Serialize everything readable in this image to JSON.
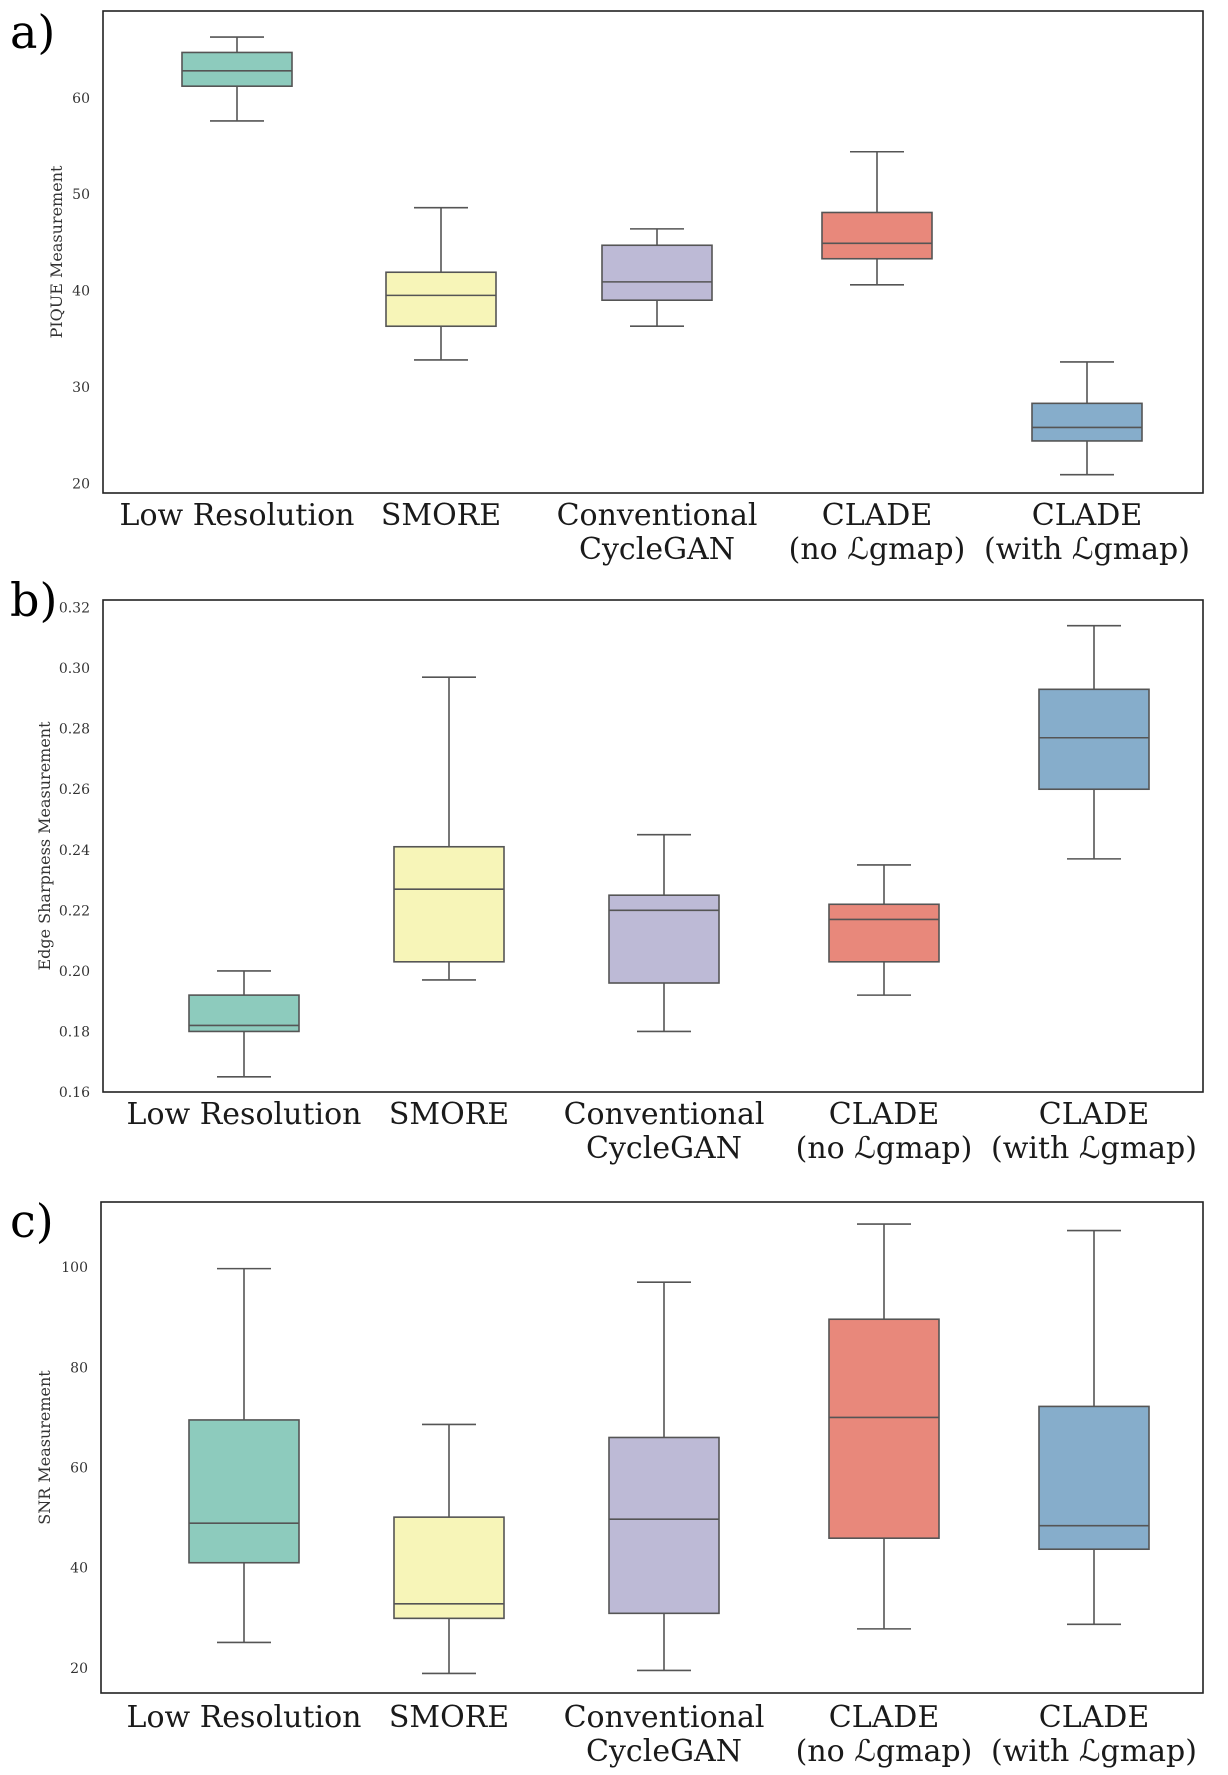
{
  "chart_data": [
    {
      "type": "box",
      "panel_label": "a)",
      "ylabel": "PIQUE Measurement",
      "ylim": [
        19,
        69
      ],
      "yticks": [
        20,
        30,
        40,
        50,
        60
      ],
      "categories": [
        {
          "line1": "Low Resolution",
          "line2": ""
        },
        {
          "line1": "SMORE",
          "line2": ""
        },
        {
          "line1": "Conventional",
          "line2": "CycleGAN"
        },
        {
          "line1": "CLADE",
          "line2": "(no ℒgmap)"
        },
        {
          "line1": "CLADE",
          "line2": "(with ℒgmap)"
        }
      ],
      "boxes": [
        {
          "min": 57.6,
          "q1": 61.2,
          "median": 62.8,
          "q3": 64.7,
          "max": 66.3,
          "color": "#8dcbbd"
        },
        {
          "min": 32.8,
          "q1": 36.3,
          "median": 39.5,
          "q3": 41.9,
          "max": 48.6,
          "color": "#f7f5b8"
        },
        {
          "min": 36.3,
          "q1": 39.0,
          "median": 40.9,
          "q3": 44.7,
          "max": 46.4,
          "color": "#bdbad6"
        },
        {
          "min": 40.6,
          "q1": 43.3,
          "median": 44.9,
          "q3": 48.1,
          "max": 54.4,
          "color": "#e8887b"
        },
        {
          "min": 20.9,
          "q1": 24.4,
          "median": 25.8,
          "q3": 28.3,
          "max": 32.6,
          "color": "#86adcb"
        }
      ]
    },
    {
      "type": "box",
      "panel_label": "b)",
      "ylabel": "Edge Sharpness Measurement",
      "ylim": [
        0.16,
        0.3225
      ],
      "yticks": [
        0.16,
        0.18,
        0.2,
        0.22,
        0.24,
        0.26,
        0.28,
        0.3,
        0.32
      ],
      "ytick_labels": [
        "0.16",
        "0.18",
        "0.20",
        "0.22",
        "0.24",
        "0.26",
        "0.28",
        "0.30",
        "0.32"
      ],
      "categories": [
        {
          "line1": "Low Resolution",
          "line2": ""
        },
        {
          "line1": "SMORE",
          "line2": ""
        },
        {
          "line1": "Conventional",
          "line2": "CycleGAN"
        },
        {
          "line1": "CLADE",
          "line2": "(no ℒgmap)"
        },
        {
          "line1": "CLADE",
          "line2": "(with ℒgmap)"
        }
      ],
      "boxes": [
        {
          "min": 0.165,
          "q1": 0.18,
          "median": 0.182,
          "q3": 0.192,
          "max": 0.2,
          "color": "#8dcbbd"
        },
        {
          "min": 0.197,
          "q1": 0.203,
          "median": 0.227,
          "q3": 0.241,
          "max": 0.297,
          "color": "#f7f5b8"
        },
        {
          "min": 0.18,
          "q1": 0.196,
          "median": 0.22,
          "q3": 0.225,
          "max": 0.245,
          "color": "#bdbad6"
        },
        {
          "min": 0.192,
          "q1": 0.203,
          "median": 0.217,
          "q3": 0.222,
          "max": 0.235,
          "color": "#e8887b"
        },
        {
          "min": 0.237,
          "q1": 0.26,
          "median": 0.277,
          "q3": 0.293,
          "max": 0.314,
          "color": "#86adcb"
        }
      ]
    },
    {
      "type": "box",
      "panel_label": "c)",
      "ylabel": "SNR Measurement",
      "ylim": [
        15,
        113
      ],
      "yticks": [
        20,
        40,
        60,
        80,
        100
      ],
      "categories": [
        {
          "line1": "Low Resolution",
          "line2": ""
        },
        {
          "line1": "SMORE",
          "line2": ""
        },
        {
          "line1": "Conventional",
          "line2": "CycleGAN"
        },
        {
          "line1": "CLADE",
          "line2": "(no ℒgmap)"
        },
        {
          "line1": "CLADE",
          "line2": "(with ℒgmap)"
        }
      ],
      "boxes": [
        {
          "min": 25.1,
          "q1": 41.0,
          "median": 48.9,
          "q3": 69.5,
          "max": 99.7,
          "color": "#8dcbbd"
        },
        {
          "min": 18.9,
          "q1": 29.9,
          "median": 32.8,
          "q3": 50.1,
          "max": 68.6,
          "color": "#f7f5b8"
        },
        {
          "min": 19.5,
          "q1": 30.9,
          "median": 49.7,
          "q3": 66.0,
          "max": 97.0,
          "color": "#bdbad6"
        },
        {
          "min": 27.8,
          "q1": 45.9,
          "median": 70.0,
          "q3": 89.6,
          "max": 108.6,
          "color": "#e8887b"
        },
        {
          "min": 28.7,
          "q1": 43.7,
          "median": 48.4,
          "q3": 72.2,
          "max": 107.3,
          "color": "#86adcb"
        }
      ]
    }
  ]
}
